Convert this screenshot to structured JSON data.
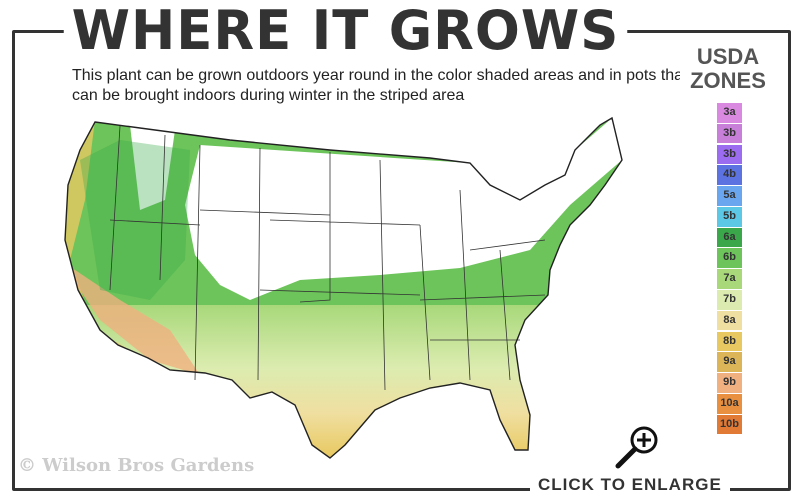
{
  "header": {
    "title": "WHERE IT GROWS",
    "subtitle": "This plant can be grown outdoors year round in the color shaded areas and in pots that can be brought indoors during winter in the striped area"
  },
  "legend": {
    "title_line1": "USDA",
    "title_line2": "ZONES",
    "zones": [
      {
        "label": "3a",
        "color": "#d98ae0"
      },
      {
        "label": "3b",
        "color": "#c77fd9"
      },
      {
        "label": "3b",
        "color": "#9b6bf0"
      },
      {
        "label": "4b",
        "color": "#5b72e0"
      },
      {
        "label": "5a",
        "color": "#6aa6f0"
      },
      {
        "label": "5b",
        "color": "#5cc8e6"
      },
      {
        "label": "6a",
        "color": "#3aa84a"
      },
      {
        "label": "6b",
        "color": "#6cc45a"
      },
      {
        "label": "7a",
        "color": "#a8d87a"
      },
      {
        "label": "7b",
        "color": "#dcecb0"
      },
      {
        "label": "8a",
        "color": "#efdfa0"
      },
      {
        "label": "8b",
        "color": "#e8c860"
      },
      {
        "label": "9a",
        "color": "#dcb558"
      },
      {
        "label": "9b",
        "color": "#f0b080"
      },
      {
        "label": "10a",
        "color": "#e89040"
      },
      {
        "label": "10b",
        "color": "#e07a35"
      }
    ]
  },
  "footer": {
    "copyright": "© Wilson Bros Gardens",
    "enlarge_label": "CLICK TO ENLARGE",
    "zoom_icon": "magnifier-plus-icon"
  }
}
